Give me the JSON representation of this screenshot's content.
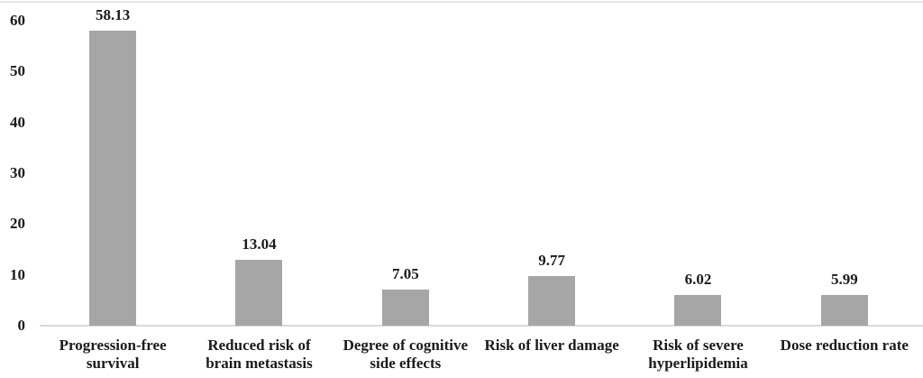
{
  "chart_data": {
    "type": "bar",
    "categories": [
      "Progression-free survival",
      "Reduced risk of brain metastasis",
      "Degree of cognitive side effects",
      "Risk of liver damage",
      "Risk of severe hyperlipidemia",
      "Dose reduction rate"
    ],
    "category_labels": [
      "Progression-free\nsurvival",
      "Reduced risk of\nbrain metastasis",
      "Degree of cognitive\nside effects",
      "Risk of liver damage",
      "Risk of severe\nhyperlipidemia",
      "Dose reduction rate"
    ],
    "values": [
      58.13,
      13.04,
      7.05,
      9.77,
      6.02,
      5.99
    ],
    "value_labels": [
      "58.13",
      "13.04",
      "7.05",
      "9.77",
      "6.02",
      "5.99"
    ],
    "yticks": [
      0,
      10,
      20,
      30,
      40,
      50,
      60
    ],
    "ylim": [
      0,
      60
    ],
    "grid": false,
    "legend": "none",
    "bar_color": "#a6a6a6",
    "axis_line_color": "#d9d9d9",
    "top_rule_color": "#e5e5e5",
    "text_color": "#1a1a1a"
  }
}
